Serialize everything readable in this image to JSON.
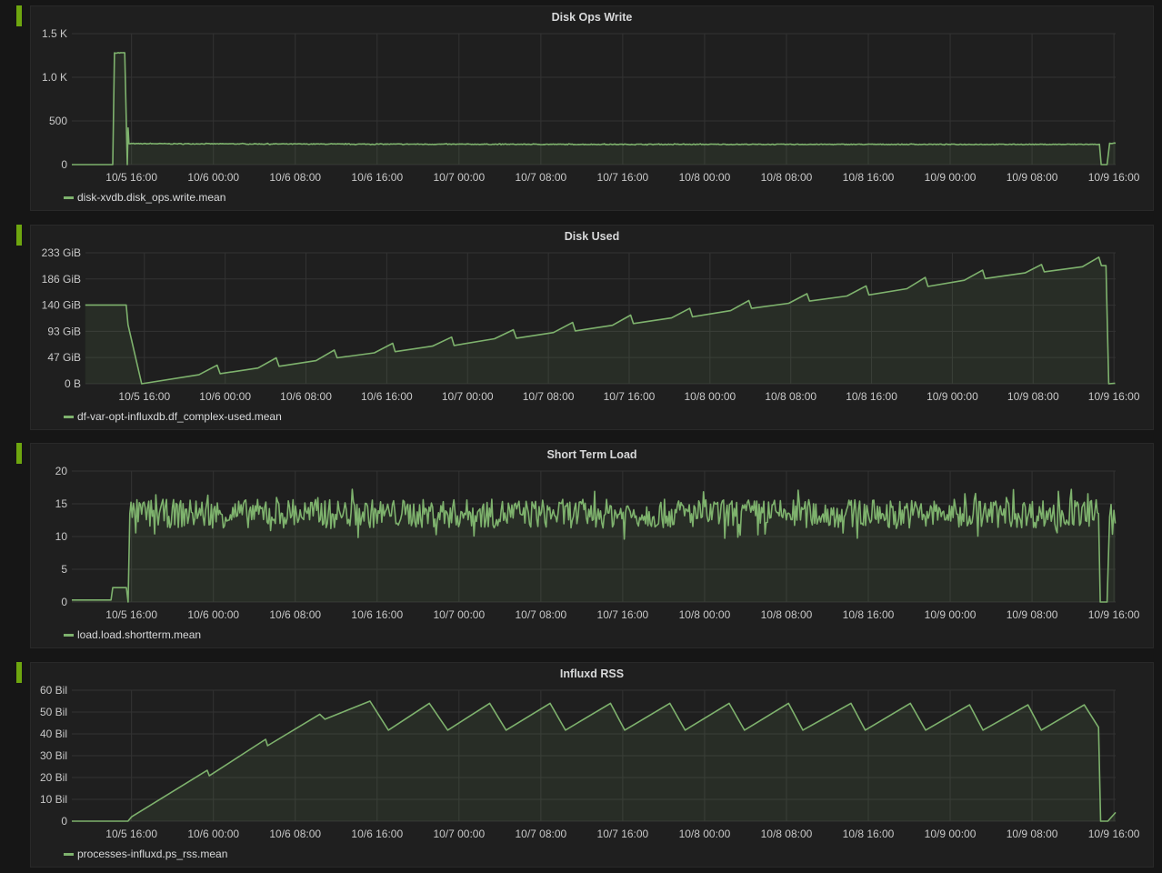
{
  "colors": {
    "series": "#7eb26d",
    "panel_marker": "#6ea60f",
    "grid": "#333333",
    "panel_bg": "#1f1f1f"
  },
  "x_range": [
    "10/5 10:10",
    "10/9 16:10"
  ],
  "x_ticks": [
    "10/5 16:00",
    "10/6 00:00",
    "10/6 08:00",
    "10/6 16:00",
    "10/7 00:00",
    "10/7 08:00",
    "10/7 16:00",
    "10/8 00:00",
    "10/8 08:00",
    "10/8 16:00",
    "10/9 00:00",
    "10/9 08:00",
    "10/9 16:00"
  ],
  "chart_data": [
    {
      "type": "area",
      "title": "Disk Ops Write",
      "ylim": [
        0,
        1500
      ],
      "y_ticks": [
        {
          "v": 0,
          "label": "0"
        },
        {
          "v": 500,
          "label": "500"
        },
        {
          "v": 1000,
          "label": "1.0 K"
        },
        {
          "v": 1500,
          "label": "1.5 K"
        }
      ],
      "noise": 4,
      "series": [
        {
          "name": "disk-xvdb.disk_ops.write.mean",
          "points": [
            [
              "10/5 10:10",
              0
            ],
            [
              "10/5 14:10",
              0
            ],
            [
              "10/5 14:20",
              1280
            ],
            [
              "10/5 15:20",
              1280
            ],
            [
              "10/5 15:35",
              0
            ],
            [
              "10/5 15:40",
              420
            ],
            [
              "10/5 15:45",
              240
            ],
            [
              "10/6 12:00",
              235
            ],
            [
              "10/7 12:00",
              232
            ],
            [
              "10/8 12:00",
              232
            ],
            [
              "10/9 14:35",
              232
            ],
            [
              "10/9 14:45",
              0
            ],
            [
              "10/9 15:20",
              0
            ],
            [
              "10/9 15:35",
              245
            ],
            [
              "10/9 16:10",
              245
            ]
          ]
        }
      ]
    },
    {
      "type": "area",
      "title": "Disk Used",
      "ylim": [
        0,
        250
      ],
      "y_ticks": [
        {
          "v": 0,
          "label": "0 B"
        },
        {
          "v": 46.6,
          "label": "47 GiB"
        },
        {
          "v": 93.1,
          "label": "93 GiB"
        },
        {
          "v": 139.7,
          "label": "140 GiB"
        },
        {
          "v": 186.3,
          "label": "186 GiB"
        },
        {
          "v": 232.8,
          "label": "233 GiB"
        }
      ],
      "ymax_tick": 232.8,
      "series": [
        {
          "name": "df-var-opt-influxdb.df_complex-used.mean",
          "points": [
            [
              "10/5 10:09",
              140
            ],
            [
              "10/5 14:12",
              140
            ],
            [
              "10/5 14:23",
              105
            ],
            [
              "10/5 15:44",
              0
            ],
            [
              "10/5 21:24",
              16
            ],
            [
              "10/5 23:12",
              33
            ],
            [
              "10/5 23:30",
              18
            ],
            [
              "10/6 03:15",
              28
            ],
            [
              "10/6 05:03",
              46
            ],
            [
              "10/6 05:20",
              31
            ],
            [
              "10/6 09:00",
              41
            ],
            [
              "10/6 10:48",
              60
            ],
            [
              "10/6 11:05",
              46
            ],
            [
              "10/6 14:46",
              55
            ],
            [
              "10/6 16:35",
              72
            ],
            [
              "10/6 16:50",
              57
            ],
            [
              "10/6 20:32",
              67
            ],
            [
              "10/6 22:25",
              83
            ],
            [
              "10/6 22:40",
              68
            ],
            [
              "10/7 02:40",
              80
            ],
            [
              "10/7 04:32",
              96
            ],
            [
              "10/7 04:50",
              81
            ],
            [
              "10/7 08:30",
              91
            ],
            [
              "10/7 10:24",
              109
            ],
            [
              "10/7 10:40",
              94
            ],
            [
              "10/7 14:21",
              104
            ],
            [
              "10/7 16:09",
              122
            ],
            [
              "10/7 16:25",
              107
            ],
            [
              "10/7 20:12",
              117
            ],
            [
              "10/7 22:00",
              134
            ],
            [
              "10/7 22:16",
              119
            ],
            [
              "10/8 02:03",
              130
            ],
            [
              "10/8 03:51",
              148
            ],
            [
              "10/8 04:07",
              134
            ],
            [
              "10/8 07:48",
              143
            ],
            [
              "10/8 09:36",
              160
            ],
            [
              "10/8 09:52",
              147
            ],
            [
              "10/8 13:34",
              156
            ],
            [
              "10/8 15:27",
              174
            ],
            [
              "10/8 15:44",
              158
            ],
            [
              "10/8 19:30",
              169
            ],
            [
              "10/8 21:19",
              189
            ],
            [
              "10/8 21:35",
              173
            ],
            [
              "10/9 01:11",
              184
            ],
            [
              "10/9 03:00",
              202
            ],
            [
              "10/9 03:15",
              187
            ],
            [
              "10/9 07:12",
              197
            ],
            [
              "10/9 08:50",
              212
            ],
            [
              "10/9 09:06",
              199
            ],
            [
              "10/9 12:53",
              208
            ],
            [
              "10/9 14:30",
              225
            ],
            [
              "10/9 14:46",
              210
            ],
            [
              "10/9 15:13",
              210
            ],
            [
              "10/9 15:29",
              0
            ],
            [
              "10/9 16:07",
              1
            ]
          ]
        }
      ]
    },
    {
      "type": "area",
      "title": "Short Term Load",
      "ylim": [
        0,
        20
      ],
      "y_ticks": [
        {
          "v": 0,
          "label": "0"
        },
        {
          "v": 5,
          "label": "5"
        },
        {
          "v": 10,
          "label": "10"
        },
        {
          "v": 15,
          "label": "15"
        },
        {
          "v": 20,
          "label": "20"
        }
      ],
      "noise": 2.2,
      "series": [
        {
          "name": "load.load.shortterm.mean",
          "points": [
            [
              "10/5 10:10",
              0.3
            ],
            [
              "10/5 14:00",
              0.3
            ],
            [
              "10/5 14:10",
              2.2
            ],
            [
              "10/5 15:30",
              2.2
            ],
            [
              "10/5 15:40",
              0
            ],
            [
              "10/5 15:50",
              13.5
            ],
            [
              "10/9 14:30",
              13.5
            ],
            [
              "10/9 14:40",
              0
            ],
            [
              "10/9 15:20",
              0
            ],
            [
              "10/9 15:35",
              13
            ],
            [
              "10/9 16:08",
              12
            ]
          ]
        }
      ]
    },
    {
      "type": "area",
      "title": "Influxd RSS",
      "ylim": [
        0,
        60
      ],
      "y_ticks": [
        {
          "v": 0,
          "label": "0"
        },
        {
          "v": 10,
          "label": "10 Bil"
        },
        {
          "v": 20,
          "label": "20 Bil"
        },
        {
          "v": 30,
          "label": "30 Bil"
        },
        {
          "v": 40,
          "label": "40 Bil"
        },
        {
          "v": 50,
          "label": "50 Bil"
        },
        {
          "v": 60,
          "label": "60 Bil"
        }
      ],
      "series": [
        {
          "name": "processes-influxd.ps_rss.mean",
          "points": [
            [
              "10/5 10:10",
              0
            ],
            [
              "10/5 15:39",
              0
            ],
            [
              "10/5 16:00",
              2
            ],
            [
              "10/5 23:24",
              23.3
            ],
            [
              "10/5 23:36",
              20.8
            ],
            [
              "10/6 05:06",
              37.5
            ],
            [
              "10/6 05:18",
              34.6
            ],
            [
              "10/6 10:24",
              49
            ],
            [
              "10/6 10:54",
              46.7
            ],
            [
              "10/6 15:18",
              55
            ],
            [
              "10/6 17:06",
              41.7
            ],
            [
              "10/6 21:06",
              54
            ],
            [
              "10/6 22:54",
              41.7
            ],
            [
              "10/7 03:00",
              54
            ],
            [
              "10/7 04:36",
              41.7
            ],
            [
              "10/7 08:54",
              54
            ],
            [
              "10/7 10:24",
              41.7
            ],
            [
              "10/7 14:48",
              54
            ],
            [
              "10/7 16:12",
              41.7
            ],
            [
              "10/7 20:36",
              54
            ],
            [
              "10/7 22:06",
              41.7
            ],
            [
              "10/8 02:24",
              54
            ],
            [
              "10/8 03:54",
              41.7
            ],
            [
              "10/8 08:12",
              54
            ],
            [
              "10/8 09:36",
              41.7
            ],
            [
              "10/8 14:18",
              54
            ],
            [
              "10/8 15:42",
              41.7
            ],
            [
              "10/8 20:06",
              54
            ],
            [
              "10/8 21:36",
              41.7
            ],
            [
              "10/9 01:54",
              53.3
            ],
            [
              "10/9 03:12",
              41.7
            ],
            [
              "10/9 07:36",
              53.3
            ],
            [
              "10/9 08:54",
              41.7
            ],
            [
              "10/9 13:06",
              53.3
            ],
            [
              "10/9 14:30",
              43
            ],
            [
              "10/9 14:42",
              0
            ],
            [
              "10/9 15:24",
              0
            ],
            [
              "10/9 16:10",
              4
            ]
          ]
        }
      ]
    }
  ]
}
